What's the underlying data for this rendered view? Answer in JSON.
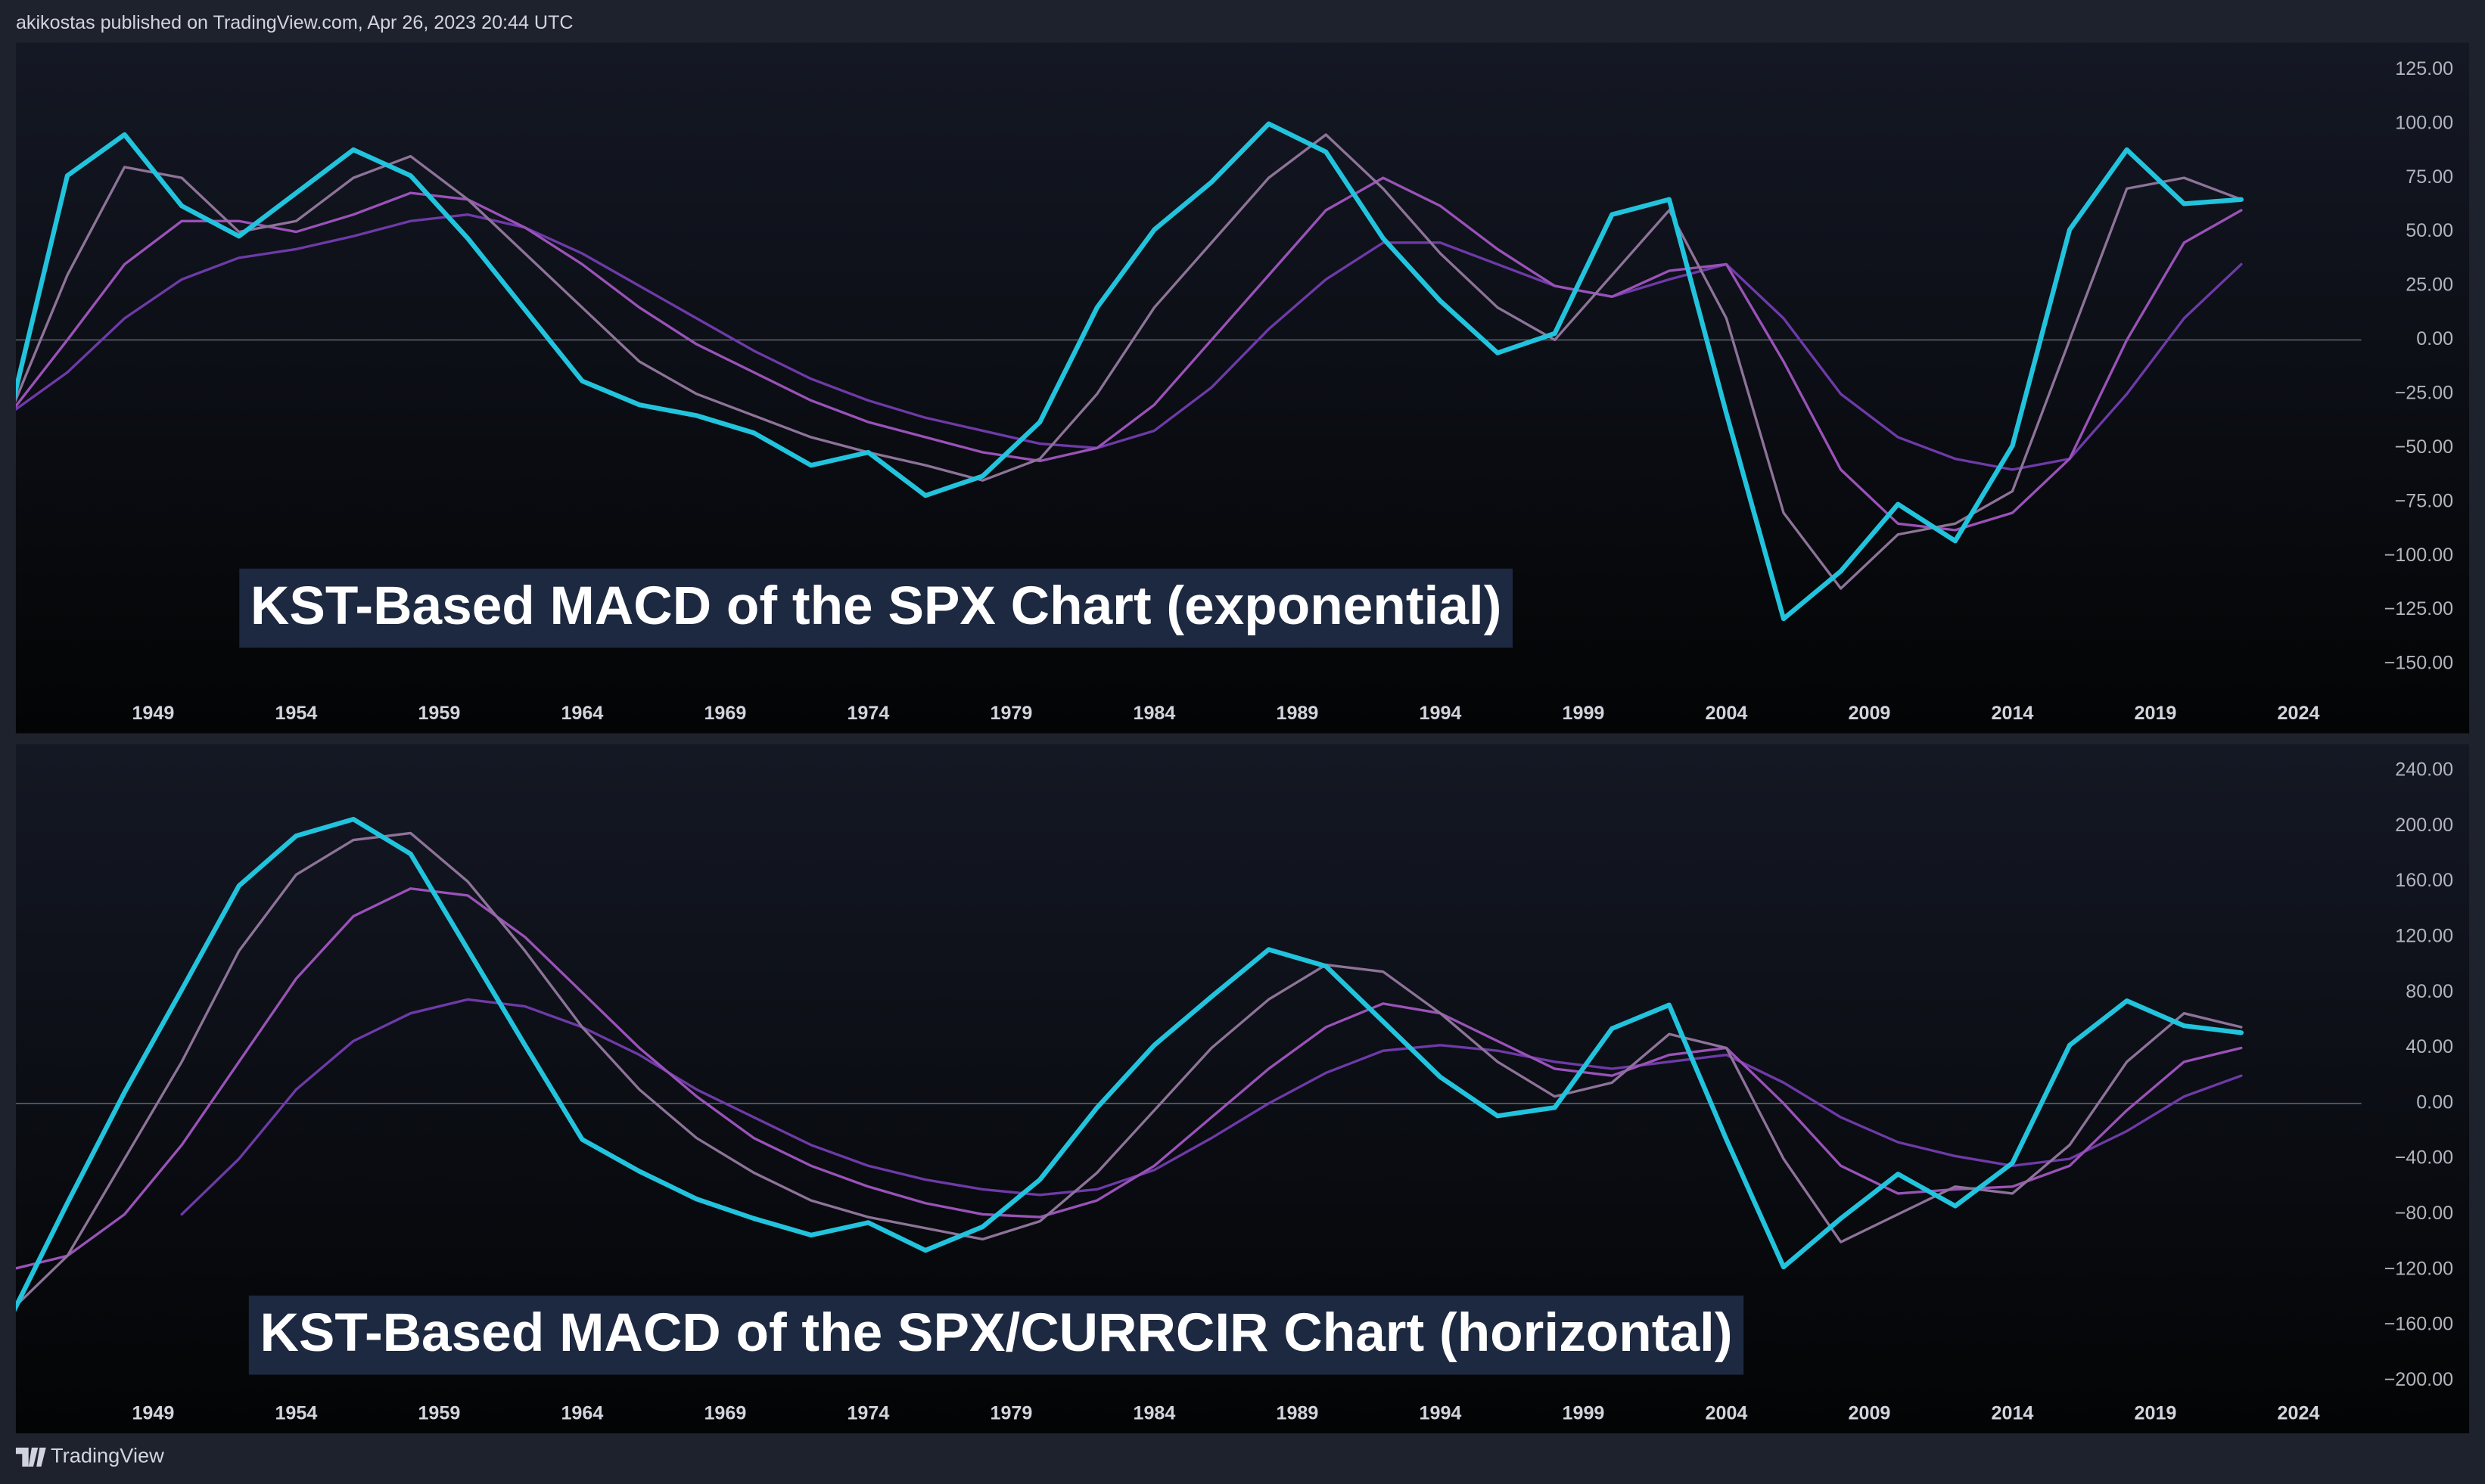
{
  "header": {
    "text": "akikostas published on TradingView.com, Apr 26, 2023 20:44 UTC"
  },
  "footer": {
    "brand": "TradingView"
  },
  "chart_data": [
    {
      "type": "line",
      "annotation": "KST-Based MACD of the SPX Chart (exponential)",
      "x": [
        1944,
        1946,
        1948,
        1950,
        1952,
        1954,
        1956,
        1958,
        1960,
        1962,
        1964,
        1966,
        1968,
        1970,
        1972,
        1974,
        1976,
        1978,
        1980,
        1982,
        1984,
        1986,
        1988,
        1990,
        1992,
        1994,
        1996,
        1998,
        2000,
        2002,
        2004,
        2006,
        2008,
        2010,
        2012,
        2014,
        2016,
        2018,
        2020,
        2022
      ],
      "series": [
        {
          "color": "#22c3dd",
          "values": [
            -34,
            76,
            95,
            62,
            48,
            68,
            88,
            76,
            47,
            14,
            -19,
            -30,
            -35,
            -43,
            -58,
            -52,
            -72,
            -63,
            -38,
            15,
            51,
            73,
            100,
            87,
            47,
            18,
            -6,
            3,
            58,
            65,
            -34,
            -129,
            -107,
            -76,
            -93,
            -49,
            51,
            88,
            63,
            65
          ]
        },
        {
          "color": "#8e7399",
          "values": [
            -34,
            30,
            80,
            75,
            50,
            55,
            75,
            85,
            65,
            40,
            15,
            -10,
            -25,
            -35,
            -45,
            -52,
            -58,
            -65,
            -55,
            -25,
            15,
            45,
            75,
            95,
            70,
            40,
            15,
            0,
            30,
            60,
            10,
            -80,
            -115,
            -90,
            -85,
            -70,
            0,
            70,
            75,
            65
          ]
        },
        {
          "color": "#9a52b8",
          "values": [
            -34,
            0,
            35,
            55,
            55,
            50,
            58,
            68,
            65,
            52,
            35,
            15,
            -2,
            -15,
            -28,
            -38,
            -45,
            -52,
            -56,
            -50,
            -30,
            0,
            30,
            60,
            75,
            62,
            42,
            25,
            20,
            32,
            35,
            -10,
            -60,
            -85,
            -88,
            -80,
            -55,
            0,
            45,
            60
          ]
        },
        {
          "color": "#6e3aa8",
          "values": [
            -34,
            -15,
            10,
            28,
            38,
            42,
            48,
            55,
            58,
            52,
            40,
            25,
            10,
            -5,
            -18,
            -28,
            -36,
            -42,
            -48,
            -50,
            -42,
            -22,
            5,
            28,
            45,
            45,
            35,
            25,
            20,
            28,
            35,
            10,
            -25,
            -45,
            -55,
            -60,
            -55,
            -25,
            10,
            35
          ]
        }
      ],
      "hline": 0,
      "xlim": [
        1944.2,
        2026.2
      ],
      "ylim": [
        -182,
        137.5
      ],
      "xticks": [
        1949,
        1954,
        1959,
        1964,
        1969,
        1974,
        1979,
        1984,
        1989,
        1994,
        1999,
        2004,
        2009,
        2014,
        2019,
        2024
      ],
      "yticks": [
        {
          "value": 125,
          "label": "125.00"
        },
        {
          "value": 100,
          "label": "100.00"
        },
        {
          "value": 75,
          "label": "75.00"
        },
        {
          "value": 50,
          "label": "50.00"
        },
        {
          "value": 25,
          "label": "25.00"
        },
        {
          "value": 0,
          "label": "0.00"
        },
        {
          "value": -25,
          "label": "−25.00"
        },
        {
          "value": -50,
          "label": "−50.00"
        },
        {
          "value": -75,
          "label": "−75.00"
        },
        {
          "value": -100,
          "label": "−100.00"
        },
        {
          "value": -125,
          "label": "−125.00"
        },
        {
          "value": -150,
          "label": "−150.00"
        }
      ]
    },
    {
      "type": "line",
      "annotation": "KST-Based MACD of the SPX/CURRCIR Chart (horizontal)",
      "x": [
        1944,
        1946,
        1948,
        1950,
        1952,
        1954,
        1956,
        1958,
        1960,
        1962,
        1964,
        1966,
        1968,
        1970,
        1972,
        1974,
        1976,
        1978,
        1980,
        1982,
        1984,
        1986,
        1988,
        1990,
        1992,
        1994,
        1996,
        1998,
        2000,
        2002,
        2004,
        2006,
        2008,
        2010,
        2012,
        2014,
        2016,
        2018,
        2020,
        2022
      ],
      "series": [
        {
          "color": "#22c3dd",
          "values": [
            -155,
            -72,
            8,
            82,
            157,
            193,
            205,
            180,
            111,
            42,
            -26,
            -49,
            -69,
            -83,
            -95,
            -86,
            -106,
            -89,
            -55,
            -3,
            42,
            77,
            111,
            99,
            59,
            19,
            -9,
            -3,
            54,
            71,
            -26,
            -118,
            -83,
            -51,
            -74,
            -43,
            42,
            74,
            56,
            51
          ]
        },
        {
          "color": "#8e7399",
          "values": [
            -150,
            -110,
            -40,
            30,
            110,
            165,
            190,
            195,
            160,
            110,
            55,
            10,
            -25,
            -50,
            -70,
            -82,
            -90,
            -98,
            -85,
            -50,
            -5,
            40,
            75,
            100,
            95,
            65,
            30,
            5,
            15,
            50,
            40,
            -40,
            -100,
            -80,
            -60,
            -65,
            -30,
            30,
            65,
            55
          ]
        },
        {
          "color": "#9a52b8",
          "values": [
            -120,
            -110,
            -80,
            -30,
            30,
            90,
            135,
            155,
            150,
            120,
            80,
            40,
            5,
            -25,
            -45,
            -60,
            -72,
            -80,
            -82,
            -70,
            -45,
            -10,
            25,
            55,
            72,
            65,
            45,
            25,
            20,
            35,
            40,
            0,
            -45,
            -65,
            -62,
            -60,
            -45,
            -5,
            30,
            40
          ]
        },
        {
          "color": "#6e3aa8",
          "values": [
            null,
            null,
            null,
            -80,
            -40,
            10,
            45,
            65,
            75,
            70,
            55,
            35,
            10,
            -10,
            -30,
            -45,
            -55,
            -62,
            -66,
            -62,
            -48,
            -25,
            0,
            22,
            38,
            42,
            38,
            30,
            25,
            30,
            35,
            15,
            -10,
            -28,
            -38,
            -45,
            -40,
            -20,
            5,
            20
          ]
        }
      ],
      "hline": 0,
      "xlim": [
        1944.2,
        2026.2
      ],
      "ylim": [
        -238,
        259
      ],
      "xticks": [
        1949,
        1954,
        1959,
        1964,
        1969,
        1974,
        1979,
        1984,
        1989,
        1994,
        1999,
        2004,
        2009,
        2014,
        2019,
        2024
      ],
      "yticks": [
        {
          "value": 240,
          "label": "240.00"
        },
        {
          "value": 200,
          "label": "200.00"
        },
        {
          "value": 160,
          "label": "160.00"
        },
        {
          "value": 120,
          "label": "120.00"
        },
        {
          "value": 80,
          "label": "80.00"
        },
        {
          "value": 40,
          "label": "40.00"
        },
        {
          "value": 0,
          "label": "0.00"
        },
        {
          "value": -40,
          "label": "−40.00"
        },
        {
          "value": -80,
          "label": "−80.00"
        },
        {
          "value": -120,
          "label": "−120.00"
        },
        {
          "value": -160,
          "label": "−160.00"
        },
        {
          "value": -200,
          "label": "−200.00"
        }
      ]
    }
  ]
}
